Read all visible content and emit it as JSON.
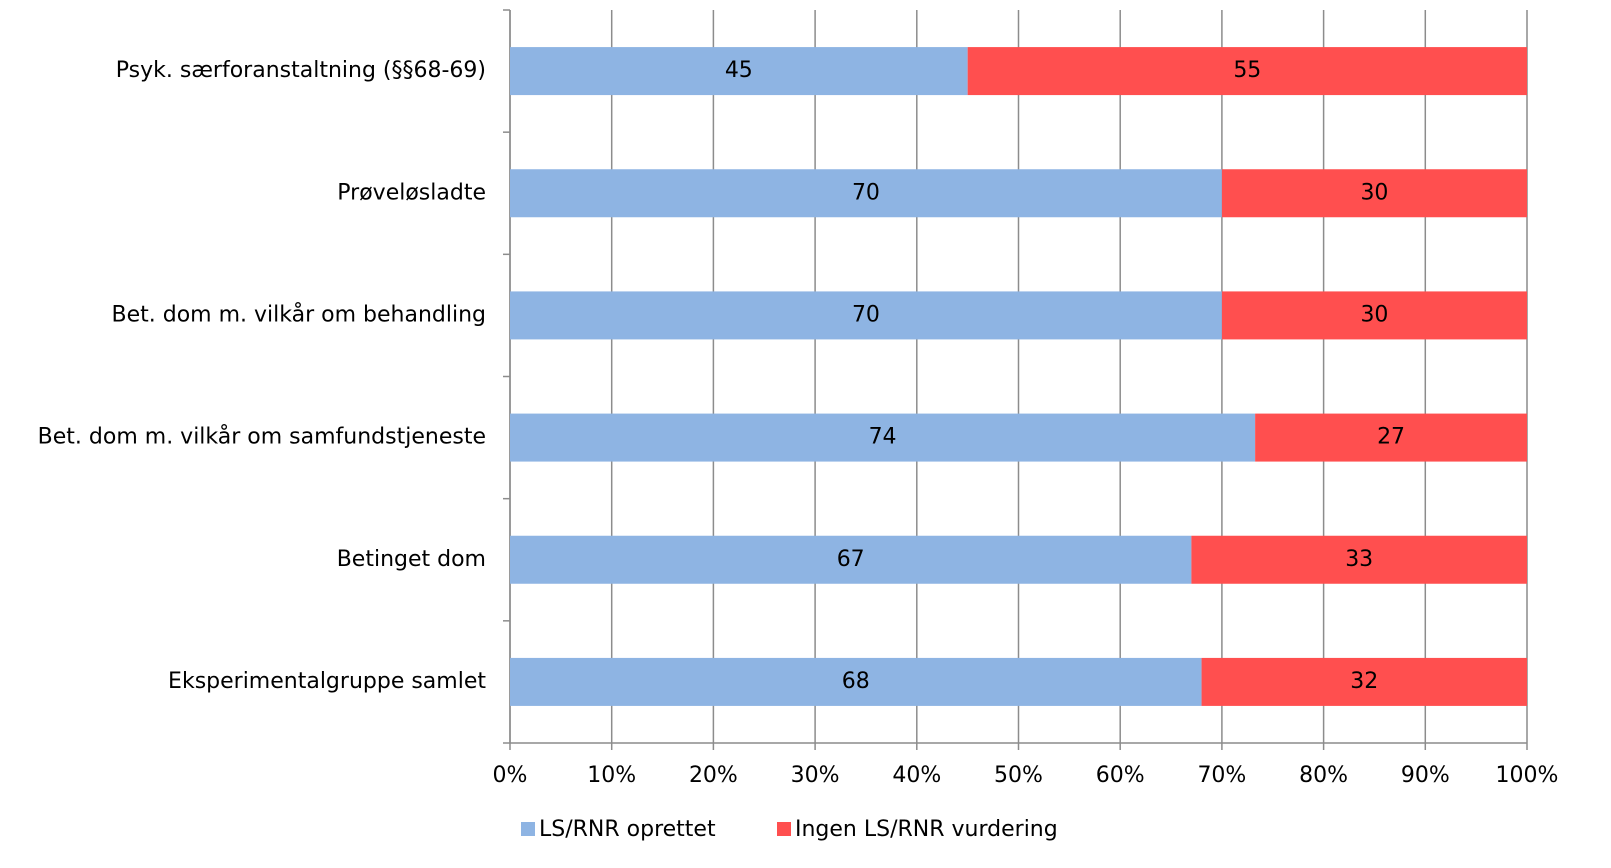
{
  "chart_data": {
    "type": "bar",
    "orientation": "horizontal",
    "stacked": "percent",
    "categories": [
      "Psyk. særforanstaltning (§§68-69)",
      "Prøveløsladte",
      "Bet. dom m. vilkår om behandling",
      "Bet. dom m. vilkår om samfundstjeneste",
      "Betinget dom",
      "Eksperimentalgruppe samlet"
    ],
    "series": [
      {
        "name": "LS/RNR oprettet",
        "color": "#8eb4e3",
        "values": [
          45,
          70,
          70,
          74,
          67,
          68
        ]
      },
      {
        "name": "Ingen LS/RNR vurdering",
        "color": "#ff4f4f",
        "values": [
          55,
          30,
          30,
          27,
          33,
          32
        ]
      }
    ],
    "xlim": [
      0,
      100
    ],
    "xticks": [
      {
        "value": 0,
        "label": "0%"
      },
      {
        "value": 10,
        "label": "10%"
      },
      {
        "value": 20,
        "label": "20%"
      },
      {
        "value": 30,
        "label": "30%"
      },
      {
        "value": 40,
        "label": "40%"
      },
      {
        "value": 50,
        "label": "50%"
      },
      {
        "value": 60,
        "label": "60%"
      },
      {
        "value": 70,
        "label": "70%"
      },
      {
        "value": 80,
        "label": "80%"
      },
      {
        "value": 90,
        "label": "90%"
      },
      {
        "value": 100,
        "label": "100%"
      }
    ],
    "grid": true,
    "legend": "bottom"
  }
}
